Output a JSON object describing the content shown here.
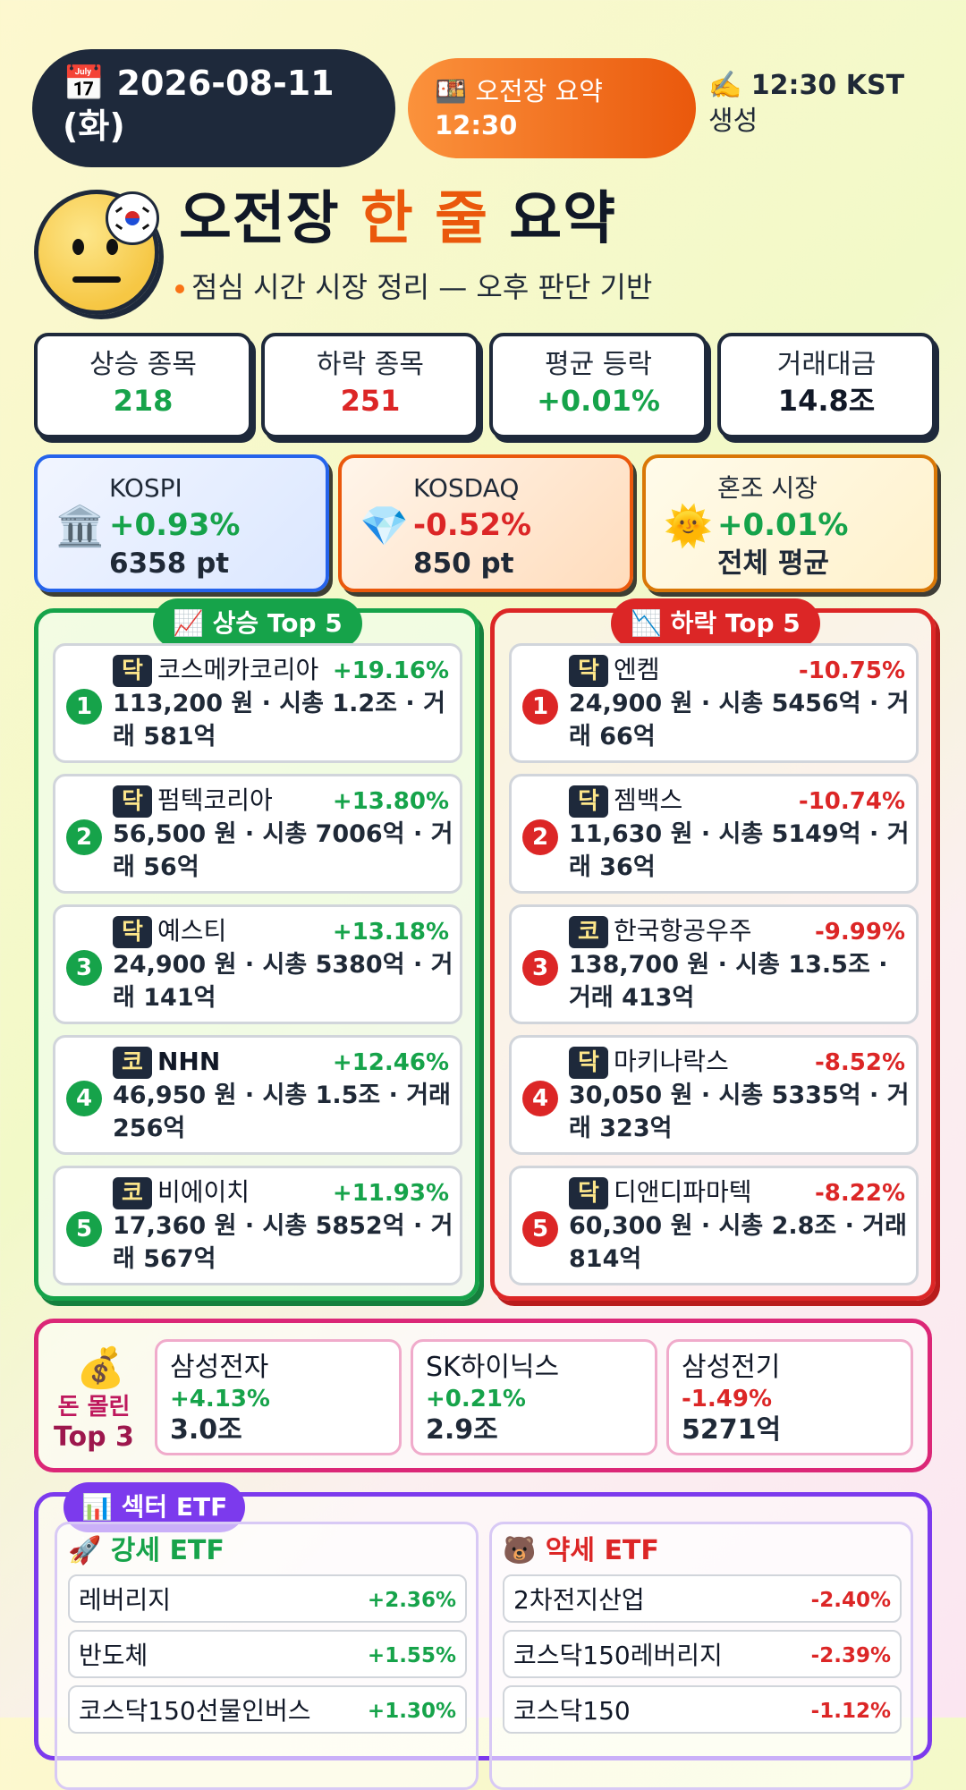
{
  "header": {
    "date_icon": "calendar-icon",
    "date_line1": "📅 2026-08-11",
    "date_line2": "(화)",
    "session_line1": "🍱 오전장 요약",
    "session_line2": "12:30",
    "generated_line1": "✍️ 12:30 KST",
    "generated_line2": "생성"
  },
  "title": {
    "part1": "오전장",
    "highlight": "한 줄",
    "part2": "요약",
    "subtitle": "점심 시간 시장 정리 — 오후 판단 기반"
  },
  "stats": [
    {
      "label": "상승 종목",
      "value": "218",
      "color": "#16a34a"
    },
    {
      "label": "하락 종목",
      "value": "251",
      "color": "#dc2626"
    },
    {
      "label": "평균 등락",
      "value": "+0.01%",
      "color": "#16a34a"
    },
    {
      "label": "거래대금",
      "value": "14.8조",
      "color": "#111827"
    }
  ],
  "indices": [
    {
      "icon": "🏛️",
      "icon_name": "bank-icon",
      "name": "KOSPI",
      "change": "+0.93%",
      "points": "6358 pt"
    },
    {
      "icon": "💎",
      "icon_name": "gem-icon",
      "name": "KOSDAQ",
      "change": "-0.52%",
      "points": "850 pt"
    },
    {
      "icon": "🌞",
      "icon_name": "sun-icon",
      "name": "혼조 시장",
      "change": "+0.01%",
      "points": "전체 평균"
    }
  ],
  "gainers": {
    "title": "📈 상승 Top 5",
    "items": [
      {
        "rank": "1",
        "market": "닥",
        "name": "코스메카코리아",
        "change": "+19.16%",
        "info": "113,200 원 · 시총 1.2조 · 거래 581억"
      },
      {
        "rank": "2",
        "market": "닥",
        "name": "펌텍코리아",
        "change": "+13.80%",
        "info": "56,500 원 · 시총 7006억 · 거래 56억"
      },
      {
        "rank": "3",
        "market": "닥",
        "name": "예스티",
        "change": "+13.18%",
        "info": "24,900 원 · 시총 5380억 · 거래 141억"
      },
      {
        "rank": "4",
        "market": "코",
        "name": "NHN",
        "change": "+12.46%",
        "info": "46,950 원 · 시총 1.5조 · 거래 256억"
      },
      {
        "rank": "5",
        "market": "코",
        "name": "비에이치",
        "change": "+11.93%",
        "info": "17,360 원 · 시총 5852억 · 거래 567억"
      }
    ]
  },
  "losers": {
    "title": "📉 하락 Top 5",
    "items": [
      {
        "rank": "1",
        "market": "닥",
        "name": "엔켐",
        "change": "-10.75%",
        "info": "24,900 원 · 시총 5456억 · 거래 66억"
      },
      {
        "rank": "2",
        "market": "닥",
        "name": "젬백스",
        "change": "-10.74%",
        "info": "11,630 원 · 시총 5149억 · 거래 36억"
      },
      {
        "rank": "3",
        "market": "코",
        "name": "한국항공우주",
        "change": "-9.99%",
        "info": "138,700 원 · 시총 13.5조 · 거래 413억"
      },
      {
        "rank": "4",
        "market": "닥",
        "name": "마키나락스",
        "change": "-8.52%",
        "info": "30,050 원 · 시총 5335억 · 거래 323억"
      },
      {
        "rank": "5",
        "market": "닥",
        "name": "디앤디파마텍",
        "change": "-8.22%",
        "info": "60,300 원 · 시총 2.8조 · 거래 814억"
      }
    ]
  },
  "money_flow": {
    "icon": "💰",
    "label1": "돈 몰린",
    "label2": "Top 3",
    "items": [
      {
        "name": "삼성전자",
        "change": "+4.13%",
        "amount": "3.0조"
      },
      {
        "name": "SK하이닉스",
        "change": "+0.21%",
        "amount": "2.9조"
      },
      {
        "name": "삼성전기",
        "change": "-1.49%",
        "amount": "5271억"
      }
    ]
  },
  "etf": {
    "title": "📊 섹터 ETF",
    "strong_title": "🚀 강세 ETF",
    "weak_title": "🐻 약세 ETF",
    "strong": [
      {
        "name": "레버리지",
        "change": "+2.36%"
      },
      {
        "name": "반도체",
        "change": "+1.55%"
      },
      {
        "name": "코스닥150선물인버스",
        "change": "+1.30%"
      }
    ],
    "weak": [
      {
        "name": "2차전지산업",
        "change": "-2.40%"
      },
      {
        "name": "코스닥150레버리지",
        "change": "-2.39%"
      },
      {
        "name": "코스닥150",
        "change": "-1.12%"
      }
    ]
  }
}
